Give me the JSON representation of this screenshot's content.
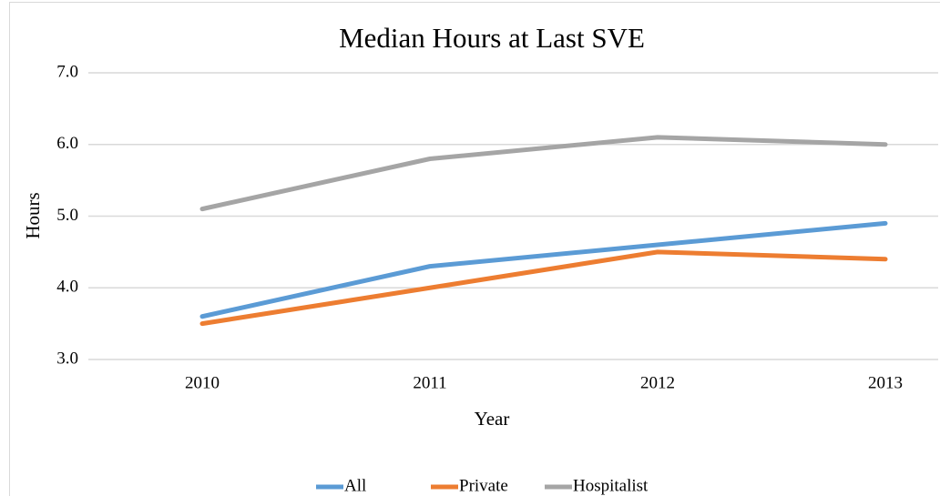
{
  "chart_data": {
    "type": "line",
    "title": "Median Hours at Last SVE",
    "x_label": "Year",
    "y_label": "Hours",
    "categories": [
      "2010",
      "2011",
      "2012",
      "2013"
    ],
    "series": [
      {
        "name": "All",
        "color": "#5b9bd5",
        "values": [
          3.6,
          4.3,
          4.6,
          4.9
        ]
      },
      {
        "name": "Private",
        "color": "#ed7d31",
        "values": [
          3.5,
          4.0,
          4.5,
          4.4
        ]
      },
      {
        "name": "Hospitalist",
        "color": "#a5a5a5",
        "values": [
          5.1,
          5.8,
          6.1,
          6.0
        ]
      }
    ],
    "ylim": [
      3,
      7
    ],
    "yticks": [
      {
        "value": 3,
        "label": "3.0"
      },
      {
        "value": 4,
        "label": "4.0"
      },
      {
        "value": 5,
        "label": "5.0"
      },
      {
        "value": 6,
        "label": "6.0"
      },
      {
        "value": 7,
        "label": "7.0"
      }
    ],
    "grid": true,
    "legend": "bottom"
  }
}
